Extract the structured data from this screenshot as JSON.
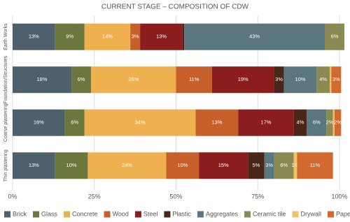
{
  "chart_data": {
    "type": "stacked-bar-horizontal",
    "title": "CURRENT STAGE – COMPOSITION OF CDW",
    "categories": [
      "Earth Works",
      "Foundation/Structures",
      "Coarse plastering",
      "Thin plastering"
    ],
    "series": [
      {
        "name": "Brick",
        "color": "#4d606b",
        "values": [
          13,
          18,
          16,
          13
        ],
        "value_labels": [
          "13%",
          "18%",
          "16%",
          "13%"
        ]
      },
      {
        "name": "Glass",
        "color": "#6b773c",
        "values": [
          9,
          6,
          6,
          10
        ],
        "value_labels": [
          "9%",
          "6%",
          "6%",
          "10%"
        ]
      },
      {
        "name": "Concrete",
        "color": "#efb04f",
        "values": [
          14,
          26,
          34,
          24
        ],
        "value_labels": [
          "14%",
          "26%",
          "34%",
          "24%"
        ]
      },
      {
        "name": "Wood",
        "color": "#c75f2a",
        "values": [
          3,
          11,
          13,
          10
        ],
        "value_labels": [
          "3%",
          "11%",
          "13%",
          "10%"
        ]
      },
      {
        "name": "Steel",
        "color": "#8b1d1d",
        "values": [
          13,
          19,
          17,
          15
        ],
        "value_labels": [
          "13%",
          "19%",
          "17%",
          "15%"
        ]
      },
      {
        "name": "Plastic",
        "color": "#4a2519",
        "values": [
          0.5,
          3,
          4,
          5
        ],
        "value_labels": [
          null,
          "3%",
          "4%",
          "5%"
        ]
      },
      {
        "name": "Aggregates",
        "color": "#5a7780",
        "values": [
          43,
          10,
          6,
          3
        ],
        "value_labels": [
          "43%",
          "10%",
          "6%",
          "3%"
        ]
      },
      {
        "name": "Ceramic tile",
        "color": "#8a8a52",
        "values": [
          6,
          4,
          2,
          6
        ],
        "value_labels": [
          "6%",
          "4%",
          "2%",
          "6%"
        ]
      },
      {
        "name": "Drywall",
        "color": "#f4c263",
        "values": [
          0,
          0.5,
          0.5,
          1
        ],
        "value_labels": [
          null,
          null,
          null,
          "1%"
        ]
      },
      {
        "name": "Paper",
        "color": "#d2692f",
        "values": [
          0,
          3,
          2,
          11
        ],
        "value_labels": [
          null,
          "3%",
          "2%",
          "11%"
        ]
      }
    ],
    "xlim": [
      0,
      100
    ],
    "xticks": [
      {
        "value": 0,
        "label": "0%"
      },
      {
        "value": 25,
        "label": "25%"
      },
      {
        "value": 50,
        "label": "50%"
      },
      {
        "value": 75,
        "label": "75%"
      },
      {
        "value": 100,
        "label": "100%"
      }
    ],
    "grid": true,
    "legend": "bottom"
  }
}
